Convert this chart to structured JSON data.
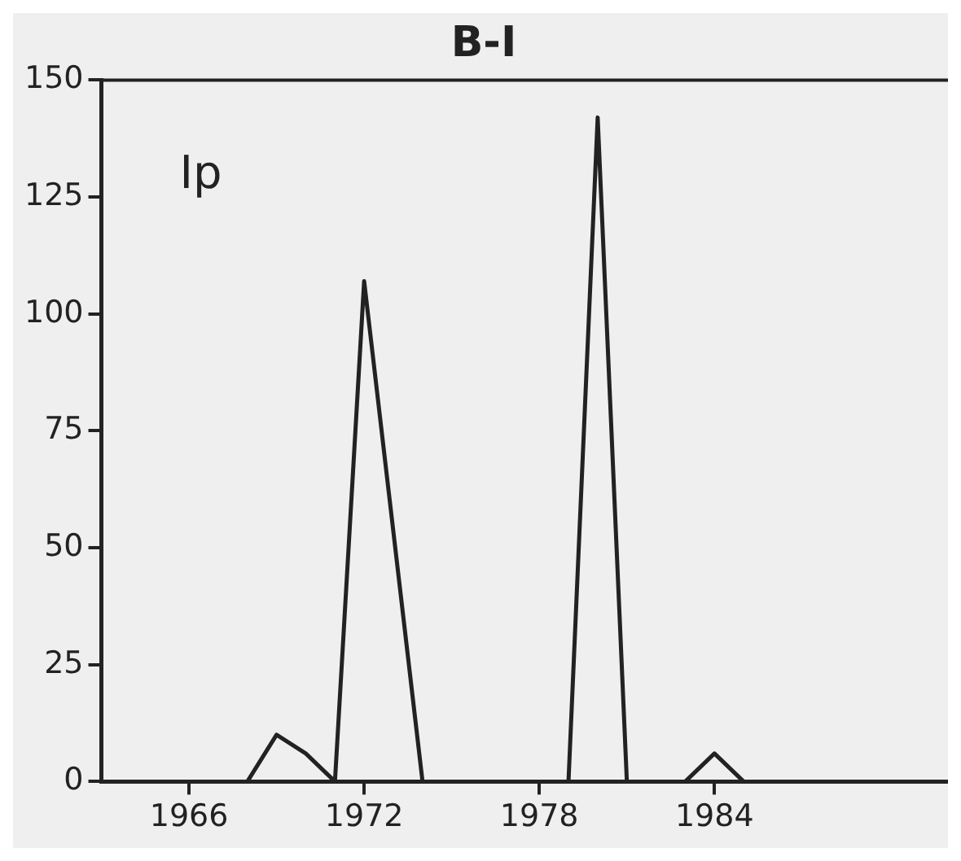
{
  "chart_data": {
    "type": "line",
    "title": "B-I",
    "annotations": [
      "Ip"
    ],
    "x": [
      1963,
      1968,
      1969,
      1970,
      1971,
      1972,
      1974,
      1979,
      1980,
      1981,
      1983,
      1984,
      1985,
      1992
    ],
    "series": [
      {
        "color": "#222222",
        "values": [
          0,
          0,
          10,
          6,
          0,
          107,
          0,
          0,
          142,
          0,
          0,
          6,
          0,
          0
        ]
      }
    ],
    "xlim": [
      1963,
      1992
    ],
    "xticks": [
      1966,
      1972,
      1978,
      1984
    ],
    "ylim": [
      0,
      150
    ],
    "yticks": [
      0,
      25,
      50,
      75,
      100,
      125,
      150
    ],
    "grid": false,
    "legend": false,
    "marker": "none",
    "line_style": "solid"
  }
}
